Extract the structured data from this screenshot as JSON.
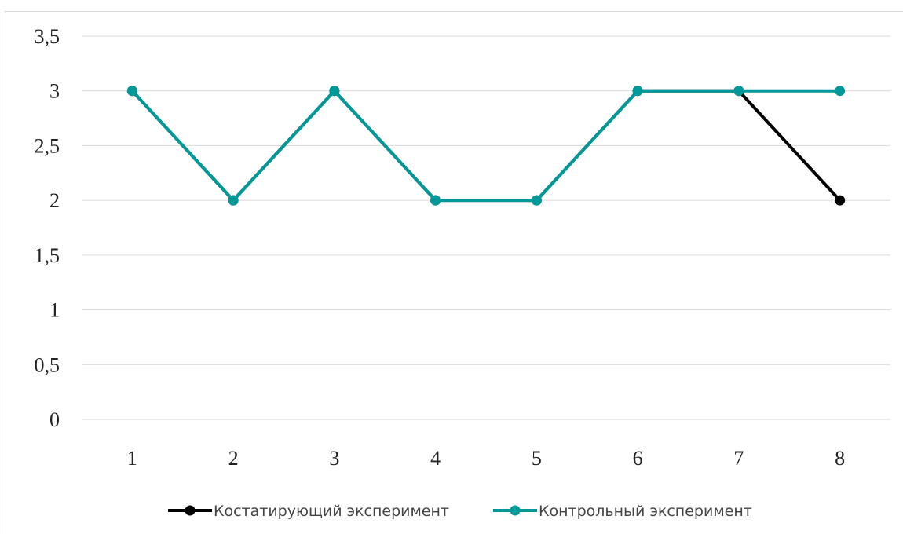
{
  "chart_data": {
    "type": "line",
    "x": [
      "1",
      "2",
      "3",
      "4",
      "5",
      "6",
      "7",
      "8"
    ],
    "series": [
      {
        "name": "Костатирующий эксперимент",
        "color": "#000000",
        "values": [
          3,
          2,
          3,
          2,
          2,
          3,
          3,
          2
        ]
      },
      {
        "name": "Контрольный эксперимент",
        "color": "#009999",
        "values": [
          3,
          2,
          3,
          2,
          2,
          3,
          3,
          3
        ]
      }
    ],
    "yticks": [
      "0",
      "0,5",
      "1",
      "1,5",
      "2",
      "2,5",
      "3",
      "3,5"
    ],
    "ylim": [
      0,
      3.5
    ],
    "grid": true,
    "legend_position": "bottom"
  }
}
